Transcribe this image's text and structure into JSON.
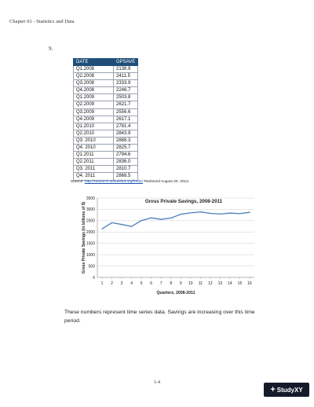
{
  "header": {
    "chapter": "Chapter 01 - Statistics and Data"
  },
  "question_number": "9.",
  "table": {
    "headers": [
      "DATE",
      "GPSAVE"
    ],
    "rows": [
      [
        "Q1.2008",
        "2138.9"
      ],
      [
        "Q2.2008",
        "2411.5"
      ],
      [
        "Q3.2008",
        "2333.9"
      ],
      [
        "Q4.2008",
        "2246.7"
      ],
      [
        "Q1.2009",
        "2503.8"
      ],
      [
        "Q2.2009",
        "2621.7"
      ],
      [
        "Q3.2009",
        "2556.6"
      ],
      [
        "Q4.2009",
        "2617.1"
      ],
      [
        "Q1.2010",
        "2781.4"
      ],
      [
        "Q2.2010",
        "2843.9"
      ],
      [
        "Q3. 2010",
        "2888.3"
      ],
      [
        "Q4. 2010",
        "2825.7"
      ],
      [
        "Q1.2011",
        "2794.6"
      ],
      [
        "Q2.2011",
        "2836.0"
      ],
      [
        "Q3. 2011",
        "2810.7"
      ],
      [
        "Q4. 2011",
        "2868.5"
      ]
    ]
  },
  "source": {
    "prefix": "Source: ",
    "link": "http://research.stlouisfed.org/fred2/",
    "suffix": " Retrieved August 20, 2012."
  },
  "chart_data": {
    "type": "line",
    "title": "Gross Private Savings, 2008-2011",
    "xlabel": "Quarters, 2008-2011",
    "ylabel": "Gross Private Savings (in billions of $)",
    "x": [
      1,
      2,
      3,
      4,
      5,
      6,
      7,
      8,
      9,
      10,
      11,
      12,
      13,
      14,
      15,
      16
    ],
    "values": [
      2138.9,
      2411.5,
      2333.9,
      2246.7,
      2503.8,
      2621.7,
      2556.6,
      2617.1,
      2781.4,
      2843.9,
      2888.3,
      2825.7,
      2794.6,
      2836.0,
      2810.7,
      2868.5
    ],
    "ylim": [
      0,
      3500
    ],
    "yticks": [
      0,
      500,
      1000,
      1500,
      2000,
      2500,
      3000,
      3500
    ],
    "grid": true,
    "line_color": "#4a7ebb"
  },
  "body_text": "These numbers represent time series data. Savings are increasing over this time period.",
  "page_number": "1-4",
  "watermark": {
    "label": "StudyXY"
  }
}
